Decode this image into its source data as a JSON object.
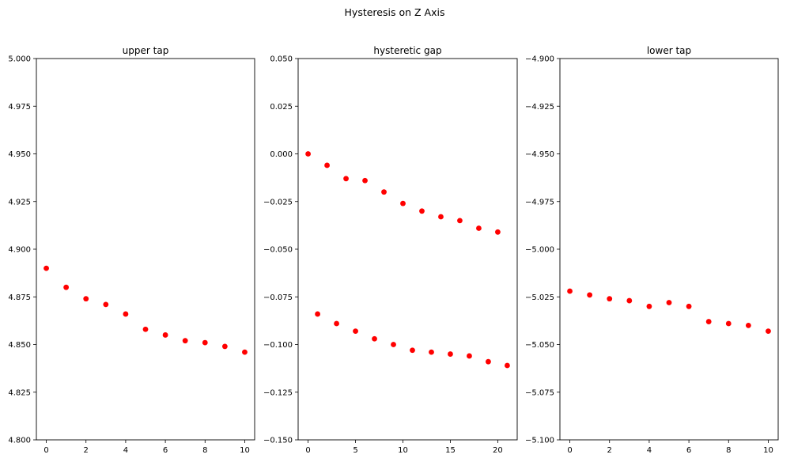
{
  "figure_title": "Hysteresis on Z Axis",
  "marker_color": "#ff0000",
  "chart_data": [
    {
      "type": "scatter",
      "title": "upper tap",
      "xlabel": "",
      "ylabel": "",
      "xlim": [
        -0.5,
        10.5
      ],
      "ylim": [
        4.8,
        5.0
      ],
      "xticks": [
        0,
        2,
        4,
        6,
        8,
        10
      ],
      "xtick_labels": [
        "0",
        "2",
        "4",
        "6",
        "8",
        "10"
      ],
      "yticks": [
        4.8,
        4.825,
        4.85,
        4.875,
        4.9,
        4.925,
        4.95,
        4.975,
        5.0
      ],
      "ytick_labels": [
        "4.800",
        "4.825",
        "4.850",
        "4.875",
        "4.900",
        "4.925",
        "4.950",
        "4.975",
        "5.000"
      ],
      "grid": false,
      "x": [
        0,
        1,
        2,
        3,
        4,
        5,
        6,
        7,
        8,
        9,
        10
      ],
      "y": [
        4.89,
        4.88,
        4.874,
        4.871,
        4.866,
        4.858,
        4.855,
        4.852,
        4.851,
        4.849,
        4.846
      ]
    },
    {
      "type": "scatter",
      "title": "hysteretic gap",
      "xlabel": "",
      "ylabel": "",
      "xlim": [
        -1.05,
        22.05
      ],
      "ylim": [
        -0.15,
        0.05
      ],
      "xticks": [
        0,
        5,
        10,
        15,
        20
      ],
      "xtick_labels": [
        "0",
        "5",
        "10",
        "15",
        "20"
      ],
      "yticks": [
        -0.15,
        -0.125,
        -0.1,
        -0.075,
        -0.05,
        -0.025,
        0.0,
        0.025,
        0.05
      ],
      "ytick_labels": [
        "−0.150",
        "−0.125",
        "−0.100",
        "−0.075",
        "−0.050",
        "−0.025",
        "0.000",
        "0.025",
        "0.050"
      ],
      "grid": false,
      "x": [
        0,
        1,
        2,
        3,
        4,
        5,
        6,
        7,
        8,
        9,
        10,
        11,
        12,
        13,
        14,
        15,
        16,
        17,
        18,
        19,
        20,
        21
      ],
      "y": [
        0.0,
        -0.084,
        -0.006,
        -0.089,
        -0.013,
        -0.093,
        -0.014,
        -0.097,
        -0.02,
        -0.1,
        -0.026,
        -0.103,
        -0.03,
        -0.104,
        -0.033,
        -0.105,
        -0.035,
        -0.106,
        -0.039,
        -0.109,
        -0.041,
        -0.111
      ]
    },
    {
      "type": "scatter",
      "title": "lower tap",
      "xlabel": "",
      "ylabel": "",
      "xlim": [
        -0.5,
        10.5
      ],
      "ylim": [
        -5.1,
        -4.9
      ],
      "xticks": [
        0,
        2,
        4,
        6,
        8,
        10
      ],
      "xtick_labels": [
        "0",
        "2",
        "4",
        "6",
        "8",
        "10"
      ],
      "yticks": [
        -5.1,
        -5.075,
        -5.05,
        -5.025,
        -5.0,
        -4.975,
        -4.95,
        -4.925,
        -4.9
      ],
      "ytick_labels": [
        "−5.100",
        "−5.075",
        "−5.050",
        "−5.025",
        "−5.000",
        "−4.975",
        "−4.950",
        "−4.925",
        "−4.900"
      ],
      "grid": false,
      "x": [
        0,
        1,
        2,
        3,
        4,
        5,
        6,
        7,
        8,
        9,
        10
      ],
      "y": [
        -5.022,
        -5.024,
        -5.026,
        -5.027,
        -5.03,
        -5.028,
        -5.03,
        -5.038,
        -5.039,
        -5.04,
        -5.043
      ]
    }
  ]
}
